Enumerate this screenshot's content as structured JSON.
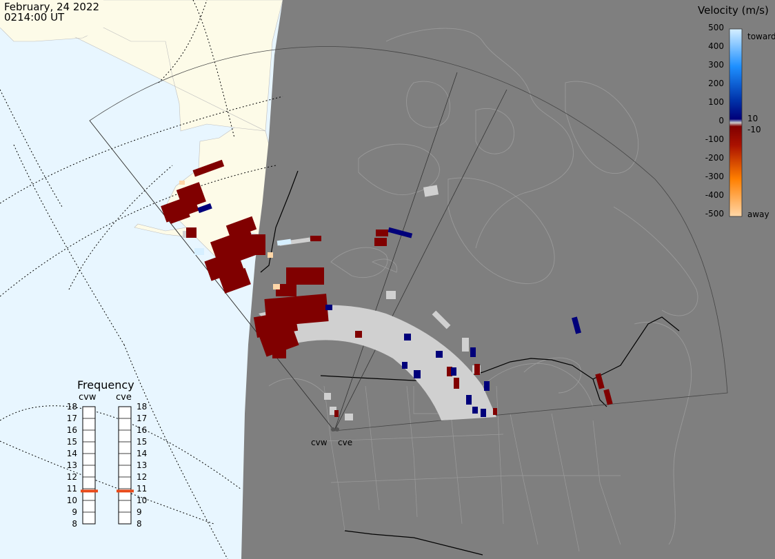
{
  "header": {
    "date": "February, 24 2022",
    "time": "0214:00 UT"
  },
  "velocity_legend": {
    "title": "Velocity (m/s)",
    "ticks": [
      "500",
      "400",
      "300",
      "200",
      "100",
      "0",
      "-100",
      "-200",
      "-300",
      "-400",
      "-500"
    ],
    "toward_label": "toward",
    "away_label": "away",
    "threshold_pos": "10",
    "threshold_neg": "-10",
    "colors": {
      "toward_max": "#d6efff",
      "toward_mid": "#1e90ff",
      "toward_min": "#00007a",
      "away_min": "#800000",
      "away_mid": "#ff7f00",
      "away_max": "#ffd7a8",
      "ground_scatter": "#d0d0d0"
    }
  },
  "frequency_legend": {
    "title": "Frequency",
    "radars": [
      {
        "name": "cvw",
        "frequency_mhz": 10.8
      },
      {
        "name": "cve",
        "frequency_mhz": 10.8
      }
    ],
    "levels": [
      "18",
      "17",
      "16",
      "15",
      "14",
      "13",
      "12",
      "11",
      "10",
      "9",
      "8"
    ],
    "marker_color": "#e84a1a"
  },
  "sites": [
    {
      "name": "cvw"
    },
    {
      "name": "cve"
    }
  ],
  "map_colors": {
    "ocean": "#e8f6ff",
    "land_day": "#fdfbe8",
    "night_region": "#7f7f7f",
    "boundary_lines": "#9a9a9a"
  }
}
